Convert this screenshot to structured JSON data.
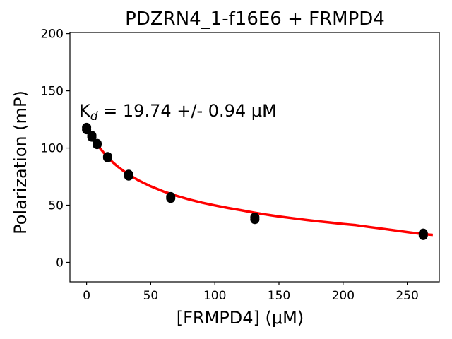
{
  "chart_data": {
    "type": "scatter",
    "title": "PDZRN4_1-f16E6 + FRMPD4",
    "xlabel": "[FRMPD4] (μM)",
    "ylabel": "Polarization (mP)",
    "annotation": {
      "prefix": "K",
      "subscript": "d",
      "text": " = 19.74 +/- 0.94 μM"
    },
    "xlim": [
      -13,
      275
    ],
    "ylim": [
      -17,
      201
    ],
    "xticks": [
      0,
      50,
      100,
      150,
      200,
      250
    ],
    "yticks": [
      0,
      50,
      100,
      150,
      200
    ],
    "grid": false,
    "series": [
      {
        "kind": "points",
        "color": "#000000",
        "x": [
          0,
          0,
          4.1,
          4.1,
          8.2,
          8.2,
          16.4,
          16.4,
          32.8,
          32.8,
          65.6,
          65.6,
          131.2,
          131.2,
          262.5,
          262.5
        ],
        "y": [
          118,
          116,
          111,
          109.5,
          104,
          103,
          92.5,
          91.5,
          77,
          75.5,
          57.5,
          56,
          39.5,
          37.5,
          25.5,
          23.5
        ]
      },
      {
        "kind": "fit",
        "color": "#ff0000",
        "x": [
          0,
          2.5,
          5,
          7.5,
          10,
          15,
          20,
          25,
          30,
          40,
          50,
          60,
          70,
          80,
          90,
          100,
          110,
          120,
          130,
          140,
          150,
          160,
          170,
          180,
          190,
          200,
          210,
          220,
          230,
          240,
          250,
          260,
          270
        ],
        "y": [
          119.0,
          113.5,
          108.6,
          104.3,
          100.4,
          93.6,
          87.9,
          83.1,
          78.9,
          72.0,
          66.5,
          62.0,
          58.2,
          55.0,
          52.2,
          49.8,
          47.6,
          45.7,
          43.6,
          41.8,
          40.1,
          38.7,
          37.3,
          36.0,
          34.8,
          33.6,
          32.5,
          31.0,
          29.5,
          28.0,
          26.5,
          25.0,
          24.0
        ]
      }
    ]
  }
}
